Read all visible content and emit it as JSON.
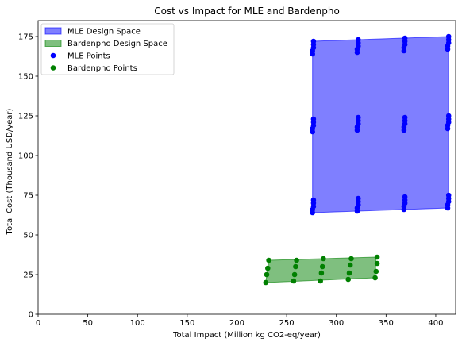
{
  "chart_data": {
    "type": "scatter",
    "title": "Cost vs Impact for MLE and Bardenpho",
    "xlabel": "Total Impact (Million kg CO2-eq/year)",
    "ylabel": "Total Cost (Thousand USD/year)",
    "xlim": [
      0,
      420
    ],
    "ylim": [
      0,
      185
    ],
    "xticks": [
      0,
      50,
      100,
      150,
      200,
      250,
      300,
      350,
      400
    ],
    "yticks": [
      0,
      25,
      50,
      75,
      100,
      125,
      150,
      175
    ],
    "grid": false,
    "legend_position": "top-left",
    "legend": [
      {
        "label": "MLE Design Space",
        "kind": "patch",
        "color": "#0000ff"
      },
      {
        "label": "Bardenpho Design Space",
        "kind": "patch",
        "color": "#008000"
      },
      {
        "label": "MLE Points",
        "kind": "marker",
        "color": "#0000ff"
      },
      {
        "label": "Bardenpho Points",
        "kind": "marker",
        "color": "#008000"
      }
    ],
    "regions": [
      {
        "name": "MLE Design Space",
        "color": "#0000ff",
        "opacity": 0.5,
        "polygon": [
          [
            276,
            172
          ],
          [
            413,
            175
          ],
          [
            413,
            67
          ],
          [
            276,
            64
          ]
        ]
      },
      {
        "name": "Bardenpho Design Space",
        "color": "#008000",
        "opacity": 0.5,
        "polygon": [
          [
            232,
            34
          ],
          [
            340,
            36
          ],
          [
            339,
            23
          ],
          [
            229,
            20
          ]
        ]
      }
    ],
    "series": [
      {
        "name": "MLE Points",
        "color": "#0000ff",
        "points": [
          [
            276,
            164
          ],
          [
            276,
            166
          ],
          [
            277,
            168
          ],
          [
            277,
            170
          ],
          [
            277,
            172
          ],
          [
            276,
            115
          ],
          [
            276,
            117
          ],
          [
            277,
            119
          ],
          [
            277,
            121
          ],
          [
            277,
            123
          ],
          [
            276,
            64
          ],
          [
            276,
            66
          ],
          [
            277,
            68
          ],
          [
            277,
            70
          ],
          [
            277,
            72
          ],
          [
            321,
            165
          ],
          [
            321,
            167
          ],
          [
            322,
            169
          ],
          [
            322,
            171
          ],
          [
            322,
            173
          ],
          [
            321,
            116
          ],
          [
            321,
            118
          ],
          [
            322,
            120
          ],
          [
            322,
            122
          ],
          [
            322,
            124
          ],
          [
            321,
            65
          ],
          [
            321,
            67
          ],
          [
            322,
            69
          ],
          [
            322,
            71
          ],
          [
            322,
            73
          ],
          [
            368,
            166
          ],
          [
            368,
            168
          ],
          [
            369,
            170
          ],
          [
            369,
            172
          ],
          [
            369,
            174
          ],
          [
            368,
            116
          ],
          [
            368,
            118
          ],
          [
            369,
            120
          ],
          [
            369,
            122
          ],
          [
            369,
            124
          ],
          [
            368,
            66
          ],
          [
            368,
            68
          ],
          [
            369,
            70
          ],
          [
            369,
            72
          ],
          [
            369,
            74
          ],
          [
            412,
            167
          ],
          [
            412,
            169
          ],
          [
            413,
            171
          ],
          [
            413,
            173
          ],
          [
            413,
            175
          ],
          [
            412,
            117
          ],
          [
            412,
            119
          ],
          [
            413,
            121
          ],
          [
            413,
            123
          ],
          [
            413,
            125
          ],
          [
            412,
            67
          ],
          [
            412,
            69
          ],
          [
            413,
            71
          ],
          [
            413,
            73
          ],
          [
            413,
            75
          ]
        ]
      },
      {
        "name": "Bardenpho Points",
        "color": "#008000",
        "points": [
          [
            229,
            20
          ],
          [
            230,
            25
          ],
          [
            231,
            29
          ],
          [
            232,
            34
          ],
          [
            257,
            21
          ],
          [
            258,
            25
          ],
          [
            259,
            30
          ],
          [
            260,
            34
          ],
          [
            284,
            21
          ],
          [
            285,
            26
          ],
          [
            286,
            30
          ],
          [
            287,
            35
          ],
          [
            312,
            22
          ],
          [
            313,
            26
          ],
          [
            314,
            31
          ],
          [
            315,
            35
          ],
          [
            339,
            23
          ],
          [
            340,
            27
          ],
          [
            341,
            32
          ],
          [
            341,
            36
          ]
        ]
      }
    ]
  }
}
